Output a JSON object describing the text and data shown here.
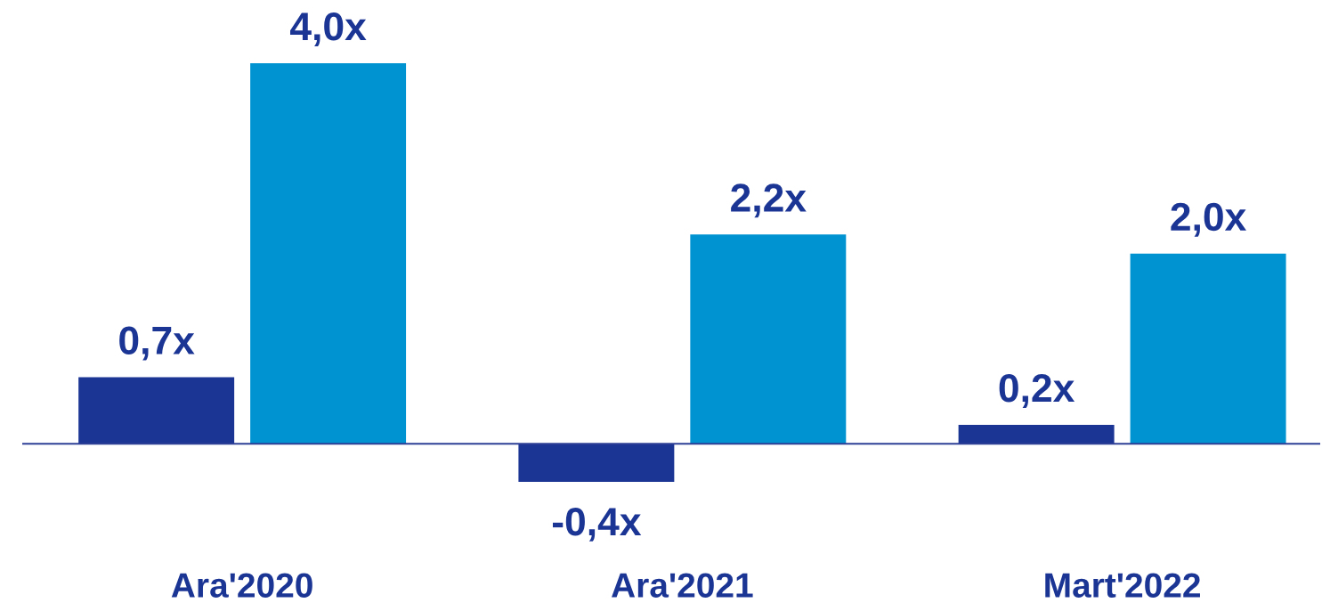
{
  "chart_data": {
    "type": "bar",
    "categories": [
      "Ara'2020",
      "Ara'2021",
      "Mart'2022"
    ],
    "series": [
      {
        "color": "#1b3595",
        "values": [
          0.7,
          -0.4,
          0.2
        ],
        "value_labels": [
          "0,7x",
          "-0,4x",
          "0,2x"
        ]
      },
      {
        "color": "#0093d2",
        "values": [
          4.0,
          2.2,
          2.0
        ],
        "value_labels": [
          "4,0x",
          "2,2x",
          "2,0x"
        ]
      }
    ],
    "ref_lines": [
      {
        "axis": "y",
        "value": 0,
        "color": "#2e3f96"
      }
    ],
    "tick_labels": "x"
  }
}
